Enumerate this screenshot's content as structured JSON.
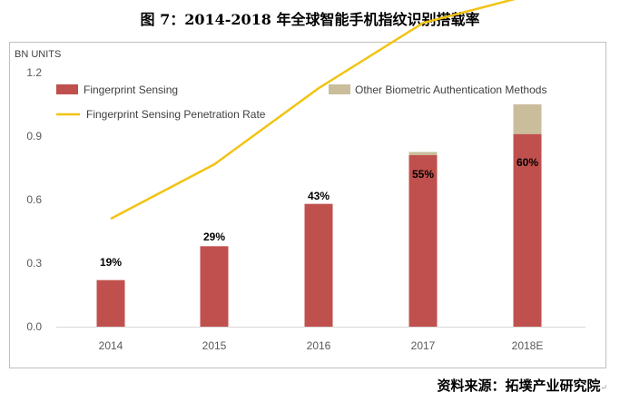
{
  "title": "图 7：2014-2018 年全球智能手机指纹识别搭载率",
  "source": "资料来源：拓墣产业研究院",
  "chart_data": {
    "type": "bar",
    "ylabel": "BN UNITS",
    "ylim": [
      0,
      1.2
    ],
    "yticks": [
      "0.0",
      "0.3",
      "0.6",
      "0.9",
      "1.2"
    ],
    "categories": [
      "2014",
      "2015",
      "2016",
      "2017",
      "2018E"
    ],
    "series": [
      {
        "name": "Fingerprint Sensing",
        "type": "bar",
        "color": "#c0504d",
        "values": [
          0.22,
          0.38,
          0.58,
          0.81,
          0.91
        ]
      },
      {
        "name": "Other Biometric Authentication Methods",
        "type": "bar-stacked",
        "color": "#c9bd9b",
        "values": [
          0.0,
          0.0,
          0.0,
          0.015,
          0.14
        ]
      },
      {
        "name": "Fingerprint Sensing Penetration Rate",
        "type": "line",
        "color": "#f2c314",
        "values": [
          19,
          29,
          43,
          55,
          60
        ],
        "labels": [
          "19%",
          "29%",
          "43%",
          "55%",
          "60%"
        ]
      }
    ],
    "legend_position": "top",
    "grid": false
  }
}
